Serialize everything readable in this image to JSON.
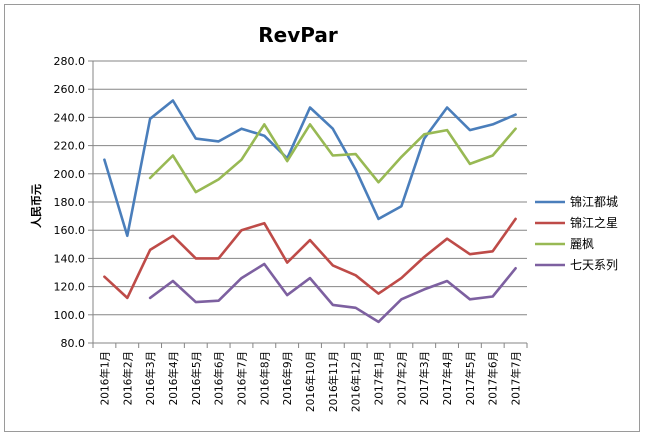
{
  "chart_data": {
    "type": "line",
    "title": "RevPar",
    "ylabel": "人民币元",
    "xlabel": "",
    "ylim": [
      80,
      280
    ],
    "yticks": [
      "80.0",
      "100.0",
      "120.0",
      "140.0",
      "160.0",
      "180.0",
      "200.0",
      "220.0",
      "240.0",
      "260.0",
      "280.0"
    ],
    "ytick_values": [
      80,
      100,
      120,
      140,
      160,
      180,
      200,
      220,
      240,
      260,
      280
    ],
    "grid": "horizontal",
    "legend_position": "right",
    "categories": [
      "2016年1月",
      "2016年2月",
      "2016年3月",
      "2016年4月",
      "2016年5月",
      "2016年6月",
      "2016年7月",
      "2016年8月",
      "2016年9月",
      "2016年10月",
      "2016年11月",
      "2016年12月",
      "2017年1月",
      "2017年2月",
      "2017年3月",
      "2017年4月",
      "2017年5月",
      "2017年6月",
      "2017年7月"
    ],
    "series": [
      {
        "name": "锦江都城",
        "color": "#4a7ebb",
        "values": [
          210,
          156,
          239,
          252,
          225,
          223,
          232,
          227,
          211,
          247,
          232,
          203,
          168,
          177,
          225,
          247,
          231,
          235,
          242
        ]
      },
      {
        "name": "锦江之星",
        "color": "#be4b48",
        "values": [
          127,
          112,
          146,
          156,
          140,
          140,
          160,
          165,
          137,
          153,
          135,
          128,
          115,
          126,
          141,
          154,
          143,
          145,
          168
        ]
      },
      {
        "name": "麗枫",
        "color": "#98b954",
        "values": [
          null,
          null,
          197,
          213,
          187,
          196,
          210,
          235,
          209,
          235,
          213,
          214,
          194,
          212,
          228,
          231,
          207,
          213,
          232
        ]
      },
      {
        "name": "七天系列",
        "color": "#7d60a0",
        "values": [
          null,
          null,
          112,
          124,
          109,
          110,
          126,
          136,
          114,
          126,
          107,
          105,
          95,
          111,
          118,
          124,
          111,
          113,
          133
        ]
      }
    ]
  }
}
